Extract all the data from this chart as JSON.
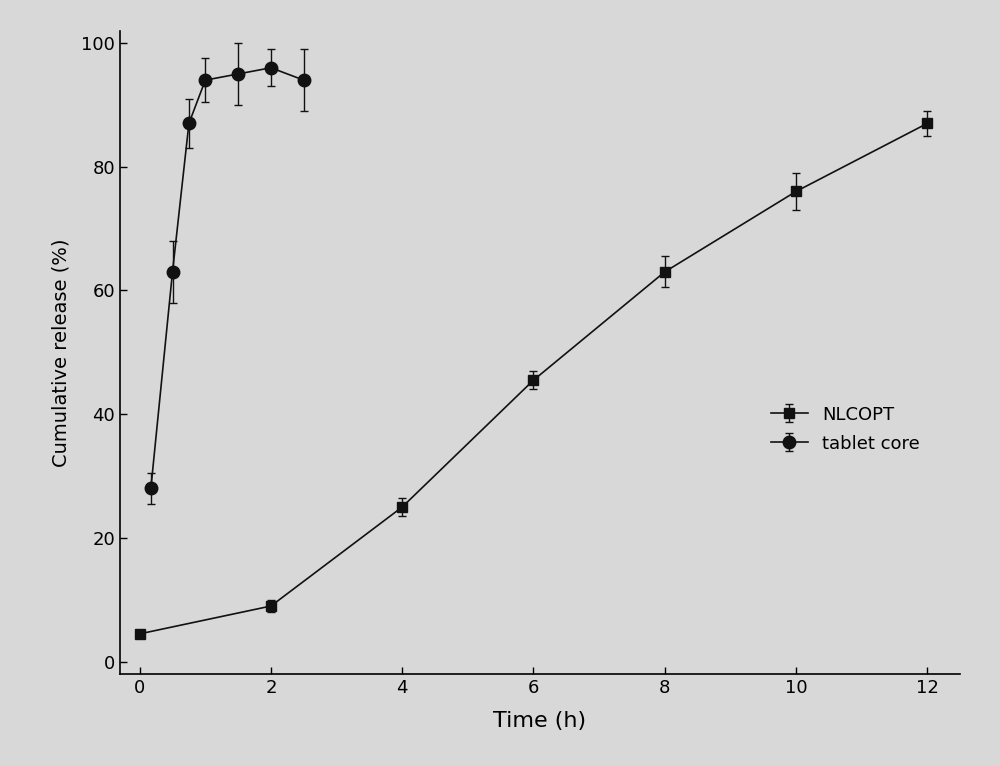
{
  "nlcopt_x": [
    0,
    2,
    4,
    6,
    8,
    10,
    12
  ],
  "nlcopt_y": [
    4.5,
    9,
    25,
    45.5,
    63,
    76,
    87
  ],
  "nlcopt_yerr": [
    0.5,
    1.0,
    1.5,
    1.5,
    2.5,
    3.0,
    2.0
  ],
  "tablet_x": [
    0.17,
    0.5,
    0.75,
    1.0,
    1.5,
    2.0,
    2.5
  ],
  "tablet_y": [
    28,
    63,
    87,
    94,
    95,
    96,
    94
  ],
  "tablet_yerr": [
    2.5,
    5.0,
    4.0,
    3.5,
    5.0,
    3.0,
    5.0
  ],
  "xlabel": "Time (h)",
  "ylabel": "Cumulative release (%)",
  "xlim": [
    -0.3,
    12.5
  ],
  "ylim": [
    -2,
    102
  ],
  "xticks": [
    0,
    2,
    4,
    6,
    8,
    10,
    12
  ],
  "yticks": [
    0,
    20,
    40,
    60,
    80,
    100
  ],
  "legend_labels": [
    "NLCOPT",
    "tablet core"
  ],
  "marker_color": "#111111",
  "bg_color": "#d8d8d8",
  "figsize": [
    10.0,
    7.66
  ],
  "dpi": 100
}
